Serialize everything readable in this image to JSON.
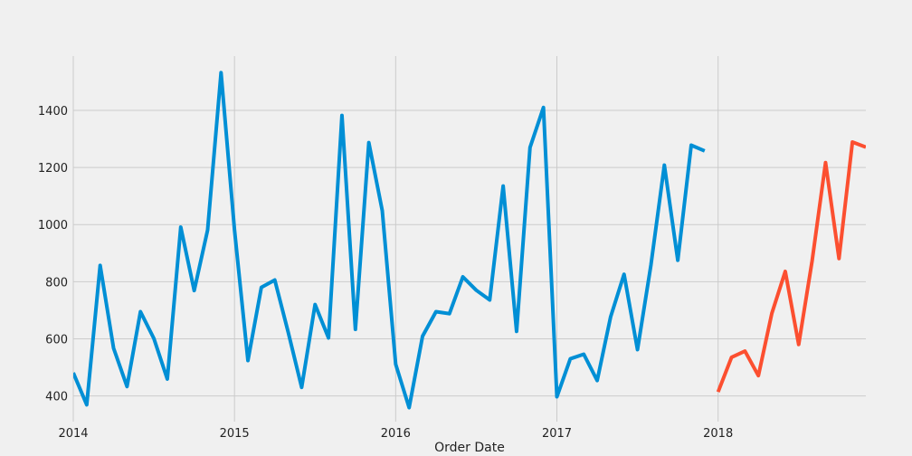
{
  "chart_data": {
    "type": "line",
    "xlabel": "Order Date",
    "ylabel": "",
    "x_tick_labels": [
      "2014",
      "2015",
      "2016",
      "2017",
      "2018"
    ],
    "y_tick_labels": [
      "400",
      "600",
      "800",
      "1000",
      "1200",
      "1400"
    ],
    "y_ticks": [
      400,
      600,
      800,
      1000,
      1200,
      1400
    ],
    "ylim": [
      310,
      1590
    ],
    "xlim": [
      "2014-01",
      "2018-12"
    ],
    "grid": true,
    "colors": {
      "observed": "#008fd5",
      "forecast": "#fc4f30",
      "background": "#f0f0f0",
      "grid": "#cbcbcb"
    },
    "series": [
      {
        "key": "observed",
        "x": [
          "2014-01",
          "2014-02",
          "2014-03",
          "2014-04",
          "2014-05",
          "2014-06",
          "2014-07",
          "2014-08",
          "2014-09",
          "2014-10",
          "2014-11",
          "2014-12",
          "2015-01",
          "2015-02",
          "2015-03",
          "2015-04",
          "2015-05",
          "2015-06",
          "2015-07",
          "2015-08",
          "2015-09",
          "2015-10",
          "2015-11",
          "2015-12",
          "2016-01",
          "2016-02",
          "2016-03",
          "2016-04",
          "2016-05",
          "2016-06",
          "2016-07",
          "2016-08",
          "2016-09",
          "2016-10",
          "2016-11",
          "2016-12",
          "2017-01",
          "2017-02",
          "2017-03",
          "2017-04",
          "2017-05",
          "2017-06",
          "2017-07",
          "2017-08",
          "2017-09",
          "2017-10",
          "2017-11",
          "2017-12"
        ],
        "values": [
          481,
          369,
          857,
          567,
          433,
          695,
          601,
          459,
          991,
          769,
          981,
          1532,
          982,
          524,
          780,
          806,
          623,
          430,
          720,
          603,
          1382,
          633,
          1287,
          1049,
          511,
          359,
          609,
          695,
          688,
          817,
          770,
          736,
          1135,
          626,
          1270,
          1410,
          397,
          530,
          546,
          454,
          677,
          826,
          562,
          858,
          1208,
          875,
          1278,
          1258
        ]
      },
      {
        "key": "forecast",
        "x": [
          "2018-01",
          "2018-02",
          "2018-03",
          "2018-04",
          "2018-05",
          "2018-06",
          "2018-07",
          "2018-08",
          "2018-09",
          "2018-10",
          "2018-11",
          "2018-12"
        ],
        "values": [
          414,
          535,
          557,
          471,
          689,
          836,
          580,
          873,
          1217,
          881,
          1289,
          1271
        ]
      }
    ]
  }
}
